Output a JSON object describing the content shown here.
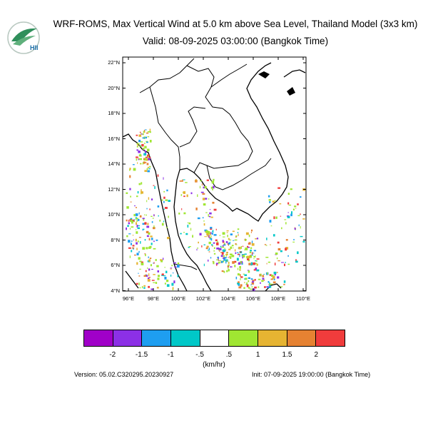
{
  "header": {
    "title": "WRF-ROMS, Max Vertical Wind at 5.0 km above Sea Level, Thailand Model (3x3 km)",
    "valid": "Valid: 08-09-2025 03:00:00 (Bangkok Time)"
  },
  "logo": {
    "text": "HII",
    "icon": "hii-logo-icon",
    "color": "#2f8f5b"
  },
  "map": {
    "lat_labels": [
      "22°N",
      "20°N",
      "18°N",
      "16°N",
      "14°N",
      "12°N",
      "10°N",
      "8°N",
      "6°N",
      "4°N"
    ],
    "lon_labels": [
      "96°E",
      "98°E",
      "100°E",
      "102°E",
      "104°E",
      "106°E",
      "108°E",
      "110°E"
    ]
  },
  "colorbar": {
    "colors": [
      "#a000c8",
      "#8c30e6",
      "#1e9ef0",
      "#00c8c8",
      "#ffffff",
      "#a0e632",
      "#e6b432",
      "#e68232",
      "#f03c3c"
    ],
    "labels": [
      "-2",
      "-1.5",
      "-1",
      "-.5",
      ".5",
      "1",
      "1.5",
      "2"
    ],
    "unit": "(km/hr)"
  },
  "footer": {
    "version": "Version: 05.02.C320295.20230927",
    "init": "Init: 07-09-2025 19:00:00 (Bangkok Time)"
  }
}
